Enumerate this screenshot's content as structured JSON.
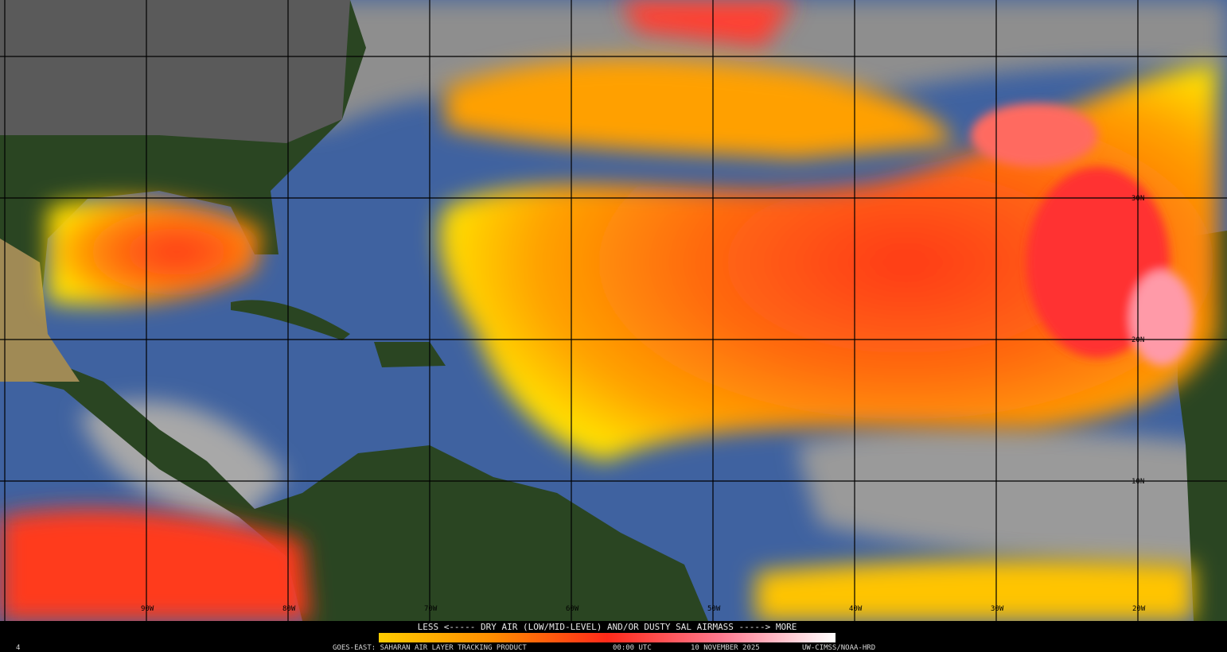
{
  "map": {
    "lon_labels": [
      "90W",
      "80W",
      "70W",
      "60W",
      "50W",
      "40W",
      "30W",
      "20W"
    ],
    "lat_labels": [
      "30N",
      "20N",
      "10N"
    ],
    "legend": {
      "caption": "LESS <----- DRY AIR (LOW/MID-LEVEL) AND/OR DUSTY SAL AIRMASS -----> MORE"
    },
    "footer": {
      "corner": "4",
      "product": "GOES-EAST: SAHARAN AIR LAYER TRACKING PRODUCT",
      "time": "00:00 UTC",
      "date": "10 NOVEMBER 2025",
      "credit": "UW-CIMSS/NOAA-HRD"
    }
  }
}
